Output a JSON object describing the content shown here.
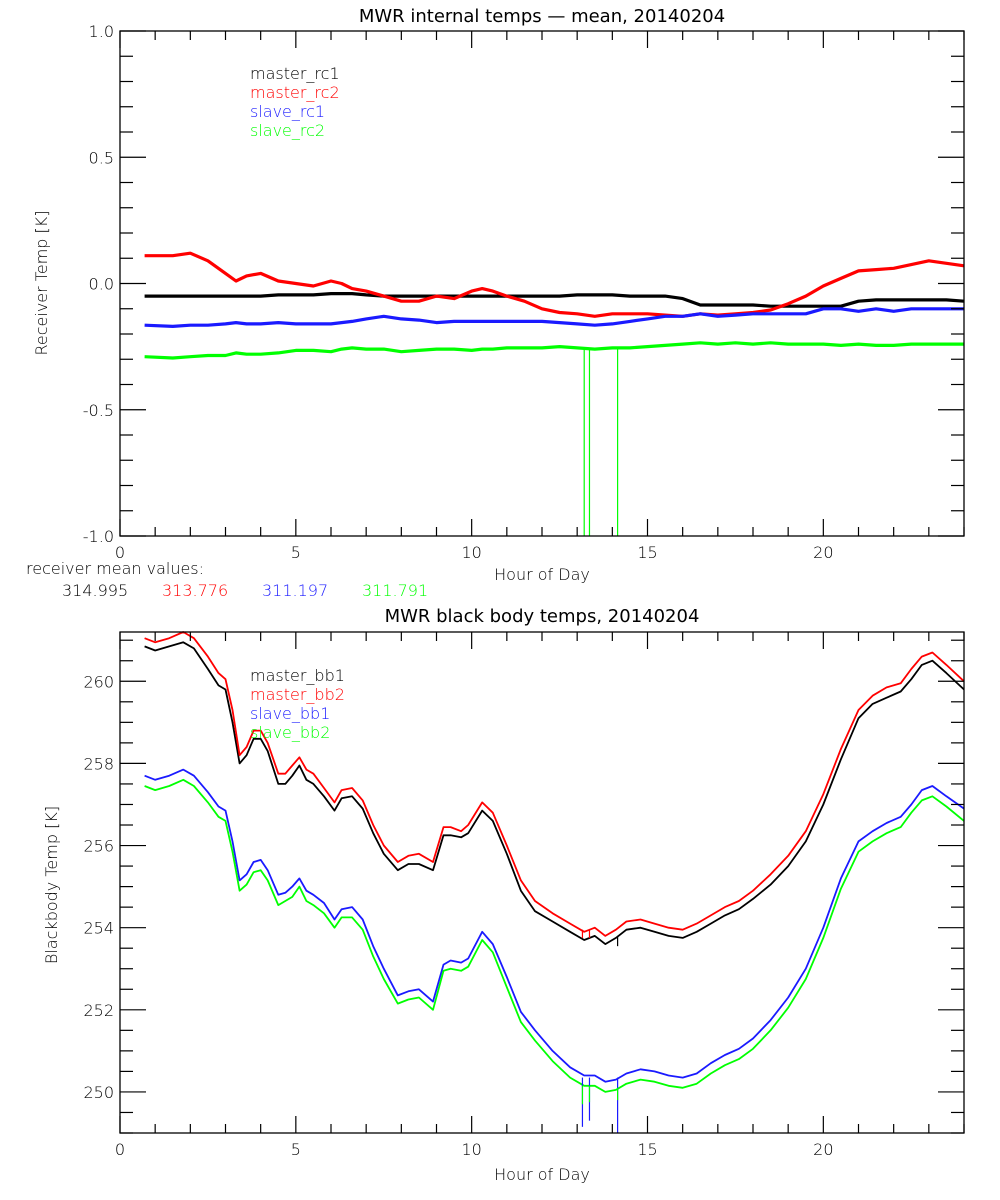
{
  "colors": {
    "black": "#000000",
    "red": "#ff0000",
    "blue": "#1a1aff",
    "green": "#00ff00"
  },
  "chart_data": [
    {
      "type": "line",
      "title": "MWR internal temps — mean, 20140204",
      "xlabel": "Hour of Day",
      "ylabel": "Receiver Temp [K]",
      "xlim": [
        0,
        24
      ],
      "ylim": [
        -1.0,
        1.0
      ],
      "xticks": [
        "0",
        "5",
        "10",
        "15",
        "20"
      ],
      "yticks": [
        "1.0",
        "0.5",
        "0.0",
        "-0.5",
        "-1.0"
      ],
      "legend": [
        "master_rc1",
        "master_rc2",
        "slave_rc1",
        "slave_rc2"
      ],
      "legend_position": "top-left",
      "x": [
        0.7,
        1.5,
        2.0,
        2.5,
        3.0,
        3.3,
        3.6,
        4.0,
        4.5,
        5.0,
        5.5,
        6.0,
        6.3,
        6.6,
        7.0,
        7.5,
        8.0,
        8.5,
        9.0,
        9.5,
        10.0,
        10.3,
        10.6,
        11.0,
        11.5,
        12.0,
        12.5,
        13.0,
        13.5,
        14.0,
        14.5,
        15.0,
        15.5,
        16.0,
        16.5,
        17.0,
        17.5,
        18.0,
        18.5,
        19.0,
        19.5,
        20.0,
        20.5,
        21.0,
        21.5,
        22.0,
        22.5,
        23.0,
        23.5,
        24.0
      ],
      "series": [
        {
          "name": "master_rc1",
          "color": "black",
          "values": [
            -0.05,
            -0.05,
            -0.05,
            -0.05,
            -0.05,
            -0.05,
            -0.05,
            -0.05,
            -0.045,
            -0.045,
            -0.045,
            -0.04,
            -0.04,
            -0.04,
            -0.045,
            -0.05,
            -0.05,
            -0.05,
            -0.05,
            -0.05,
            -0.05,
            -0.05,
            -0.05,
            -0.05,
            -0.05,
            -0.05,
            -0.05,
            -0.045,
            -0.045,
            -0.045,
            -0.05,
            -0.05,
            -0.05,
            -0.06,
            -0.085,
            -0.085,
            -0.085,
            -0.085,
            -0.09,
            -0.09,
            -0.09,
            -0.09,
            -0.09,
            -0.07,
            -0.065,
            -0.065,
            -0.065,
            -0.065,
            -0.065,
            -0.07
          ]
        },
        {
          "name": "master_rc2",
          "color": "red",
          "values": [
            0.11,
            0.11,
            0.12,
            0.09,
            0.04,
            0.01,
            0.03,
            0.04,
            0.01,
            0.0,
            -0.01,
            0.01,
            0.0,
            -0.02,
            -0.03,
            -0.05,
            -0.07,
            -0.07,
            -0.05,
            -0.06,
            -0.03,
            -0.02,
            -0.03,
            -0.05,
            -0.07,
            -0.1,
            -0.115,
            -0.12,
            -0.13,
            -0.12,
            -0.12,
            -0.12,
            -0.125,
            -0.13,
            -0.12,
            -0.125,
            -0.12,
            -0.115,
            -0.105,
            -0.08,
            -0.05,
            -0.01,
            0.02,
            0.05,
            0.055,
            0.06,
            0.075,
            0.09,
            0.08,
            0.07
          ]
        },
        {
          "name": "slave_rc1",
          "color": "blue",
          "values": [
            -0.165,
            -0.17,
            -0.165,
            -0.165,
            -0.16,
            -0.155,
            -0.16,
            -0.16,
            -0.155,
            -0.16,
            -0.16,
            -0.16,
            -0.155,
            -0.15,
            -0.14,
            -0.13,
            -0.14,
            -0.145,
            -0.155,
            -0.15,
            -0.15,
            -0.15,
            -0.15,
            -0.15,
            -0.15,
            -0.15,
            -0.155,
            -0.16,
            -0.165,
            -0.16,
            -0.15,
            -0.14,
            -0.13,
            -0.13,
            -0.12,
            -0.13,
            -0.125,
            -0.12,
            -0.12,
            -0.12,
            -0.12,
            -0.1,
            -0.1,
            -0.11,
            -0.1,
            -0.11,
            -0.1,
            -0.1,
            -0.1,
            -0.1
          ]
        },
        {
          "name": "slave_rc2",
          "color": "green",
          "values": [
            -0.29,
            -0.295,
            -0.29,
            -0.285,
            -0.285,
            -0.275,
            -0.28,
            -0.28,
            -0.275,
            -0.265,
            -0.265,
            -0.27,
            -0.26,
            -0.255,
            -0.26,
            -0.26,
            -0.27,
            -0.265,
            -0.26,
            -0.26,
            -0.265,
            -0.26,
            -0.26,
            -0.255,
            -0.255,
            -0.255,
            -0.25,
            -0.255,
            -0.26,
            -0.255,
            -0.255,
            -0.25,
            -0.245,
            -0.24,
            -0.235,
            -0.24,
            -0.235,
            -0.24,
            -0.235,
            -0.24,
            -0.24,
            -0.24,
            -0.245,
            -0.24,
            -0.245,
            -0.245,
            -0.24,
            -0.24,
            -0.24,
            -0.24
          ]
        }
      ],
      "spikes": [
        {
          "x": 13.2,
          "color": "green",
          "from": -0.26,
          "to": -1.0
        },
        {
          "x": 13.35,
          "color": "green",
          "from": -0.26,
          "to": -1.0
        },
        {
          "x": 14.15,
          "color": "green",
          "from": -0.26,
          "to": -1.0
        }
      ],
      "annotation_label": "receiver mean values:",
      "annotation_values": [
        {
          "text": "314.995",
          "color": "black"
        },
        {
          "text": "313.776",
          "color": "red"
        },
        {
          "text": "311.197",
          "color": "blue"
        },
        {
          "text": "311.791",
          "color": "green"
        }
      ]
    },
    {
      "type": "line",
      "title": "MWR black body temps, 20140204",
      "xlabel": "Hour of Day",
      "ylabel": "Blackbody Temp [K]",
      "xlim": [
        0,
        24
      ],
      "ylim": [
        249.0,
        261.2
      ],
      "xticks": [
        "0",
        "5",
        "10",
        "15",
        "20"
      ],
      "yticks": [
        "260",
        "258",
        "256",
        "254",
        "252",
        "250"
      ],
      "legend": [
        "master_bb1",
        "master_bb2",
        "slave_bb1",
        "slave_bb2"
      ],
      "legend_position": "top-left",
      "x": [
        0.7,
        1.0,
        1.4,
        1.8,
        2.1,
        2.5,
        2.8,
        3.0,
        3.2,
        3.4,
        3.6,
        3.8,
        4.0,
        4.2,
        4.5,
        4.7,
        4.9,
        5.1,
        5.3,
        5.5,
        5.8,
        6.1,
        6.3,
        6.6,
        6.9,
        7.2,
        7.5,
        7.9,
        8.2,
        8.5,
        8.9,
        9.2,
        9.4,
        9.7,
        9.9,
        10.3,
        10.6,
        11.0,
        11.4,
        11.8,
        12.3,
        12.8,
        13.2,
        13.5,
        13.8,
        14.1,
        14.4,
        14.8,
        15.2,
        15.6,
        16.0,
        16.4,
        16.8,
        17.2,
        17.6,
        18.0,
        18.5,
        19.0,
        19.5,
        20.0,
        20.5,
        21.0,
        21.4,
        21.8,
        22.2,
        22.5,
        22.8,
        23.1,
        23.5,
        24.0
      ],
      "series": [
        {
          "name": "master_bb1",
          "color": "black",
          "values": [
            260.85,
            260.75,
            260.85,
            260.95,
            260.8,
            260.3,
            259.9,
            259.8,
            259.0,
            258.0,
            258.2,
            258.6,
            258.6,
            258.3,
            257.5,
            257.5,
            257.7,
            257.95,
            257.6,
            257.5,
            257.2,
            256.85,
            257.15,
            257.2,
            256.9,
            256.3,
            255.8,
            255.4,
            255.55,
            255.55,
            255.4,
            256.25,
            256.25,
            256.2,
            256.3,
            256.85,
            256.6,
            255.8,
            254.9,
            254.4,
            254.15,
            253.9,
            253.7,
            253.8,
            253.6,
            253.75,
            253.95,
            254.0,
            253.9,
            253.8,
            253.75,
            253.9,
            254.1,
            254.3,
            254.45,
            254.7,
            255.05,
            255.5,
            256.1,
            257.0,
            258.1,
            259.1,
            259.45,
            259.6,
            259.75,
            260.05,
            260.4,
            260.5,
            260.2,
            259.8
          ]
        },
        {
          "name": "master_bb2",
          "color": "red",
          "values": [
            261.05,
            260.95,
            261.05,
            261.2,
            261.05,
            260.6,
            260.2,
            260.05,
            259.3,
            258.2,
            258.4,
            258.8,
            258.8,
            258.5,
            257.75,
            257.75,
            257.95,
            258.15,
            257.85,
            257.75,
            257.4,
            257.05,
            257.35,
            257.4,
            257.1,
            256.5,
            256.0,
            255.6,
            255.75,
            255.8,
            255.6,
            256.45,
            256.45,
            256.35,
            256.5,
            257.05,
            256.8,
            256.0,
            255.15,
            254.65,
            254.35,
            254.1,
            253.9,
            254.0,
            253.8,
            253.95,
            254.15,
            254.2,
            254.1,
            254.0,
            253.95,
            254.1,
            254.3,
            254.5,
            254.65,
            254.9,
            255.3,
            255.75,
            256.35,
            257.25,
            258.35,
            259.3,
            259.65,
            259.85,
            259.95,
            260.3,
            260.6,
            260.7,
            260.4,
            260.0
          ]
        },
        {
          "name": "slave_bb1",
          "color": "blue",
          "values": [
            257.7,
            257.6,
            257.7,
            257.85,
            257.7,
            257.3,
            256.95,
            256.85,
            256.1,
            255.15,
            255.3,
            255.6,
            255.65,
            255.4,
            254.8,
            254.85,
            255.0,
            255.2,
            254.9,
            254.8,
            254.6,
            254.2,
            254.45,
            254.5,
            254.2,
            253.55,
            253.0,
            252.35,
            252.45,
            252.5,
            252.2,
            253.1,
            253.2,
            253.15,
            253.25,
            253.9,
            253.6,
            252.8,
            251.95,
            251.5,
            251.0,
            250.6,
            250.4,
            250.4,
            250.25,
            250.3,
            250.45,
            250.55,
            250.5,
            250.4,
            250.35,
            250.45,
            250.7,
            250.9,
            251.05,
            251.3,
            251.75,
            252.3,
            253.0,
            254.0,
            255.2,
            256.1,
            256.35,
            256.55,
            256.7,
            257.0,
            257.35,
            257.45,
            257.2,
            256.9
          ]
        },
        {
          "name": "slave_bb2",
          "color": "green",
          "values": [
            257.45,
            257.35,
            257.45,
            257.6,
            257.45,
            257.05,
            256.7,
            256.6,
            255.85,
            254.9,
            255.05,
            255.35,
            255.4,
            255.15,
            254.55,
            254.65,
            254.75,
            255.0,
            254.65,
            254.55,
            254.35,
            254.0,
            254.25,
            254.25,
            253.95,
            253.3,
            252.75,
            252.15,
            252.25,
            252.3,
            252.0,
            252.95,
            253.0,
            252.95,
            253.05,
            253.7,
            253.4,
            252.55,
            251.7,
            251.25,
            250.75,
            250.35,
            250.15,
            250.15,
            250.0,
            250.05,
            250.2,
            250.3,
            250.25,
            250.15,
            250.1,
            250.2,
            250.45,
            250.65,
            250.8,
            251.05,
            251.5,
            252.05,
            252.75,
            253.75,
            254.95,
            255.85,
            256.1,
            256.3,
            256.45,
            256.8,
            257.1,
            257.2,
            256.95,
            256.6
          ]
        }
      ],
      "spikes": [
        {
          "x": 13.15,
          "color": "blue",
          "from": 250.35,
          "to": 249.15
        },
        {
          "x": 13.35,
          "color": "blue",
          "from": 250.35,
          "to": 249.3
        },
        {
          "x": 14.15,
          "color": "blue",
          "from": 250.35,
          "to": 249.0
        },
        {
          "x": 13.15,
          "color": "green",
          "from": 250.15,
          "to": 249.7
        },
        {
          "x": 13.35,
          "color": "green",
          "from": 250.15,
          "to": 249.75
        },
        {
          "x": 14.15,
          "color": "green",
          "from": 250.1,
          "to": 249.8
        },
        {
          "x": 13.15,
          "color": "red",
          "from": 253.95,
          "to": 253.75
        },
        {
          "x": 13.35,
          "color": "red",
          "from": 253.95,
          "to": 253.75
        },
        {
          "x": 14.15,
          "color": "black",
          "from": 253.8,
          "to": 253.55
        }
      ]
    }
  ]
}
